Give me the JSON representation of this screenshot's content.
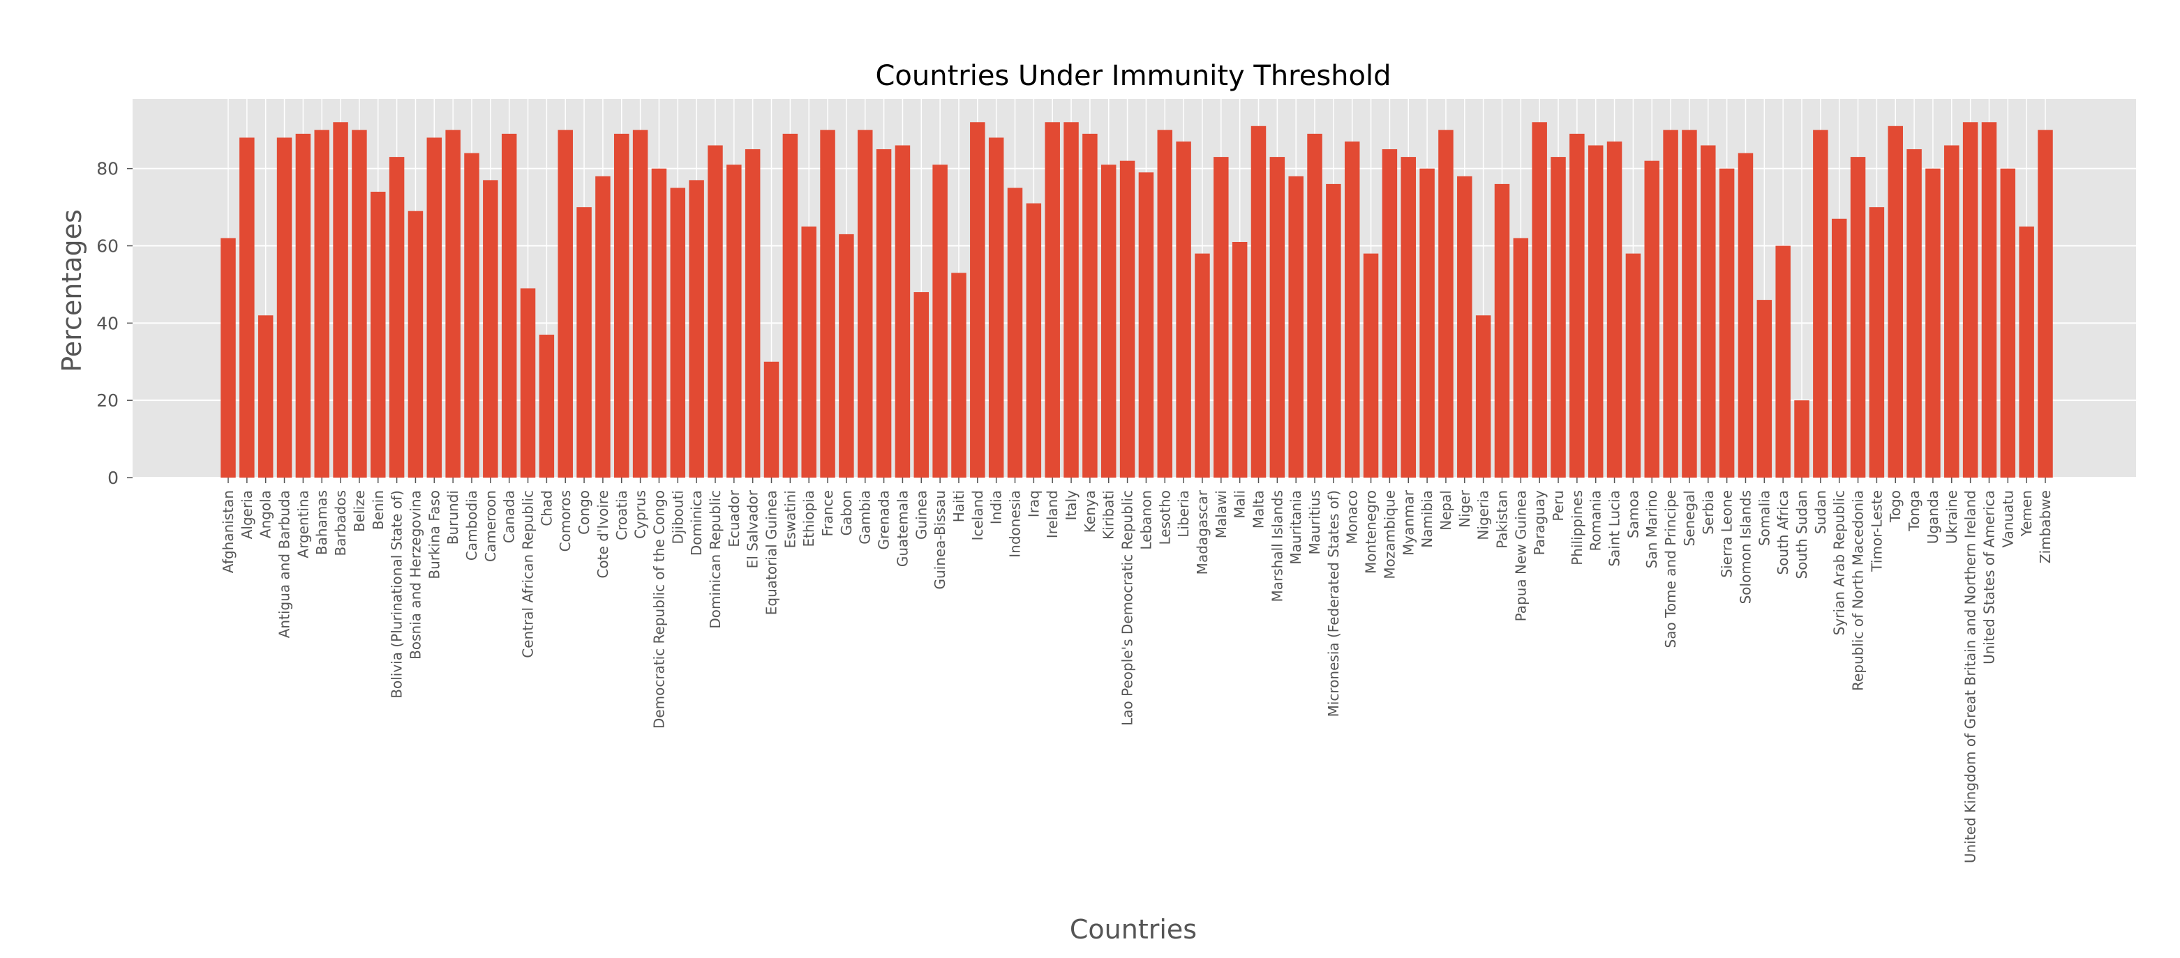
{
  "chart_data": {
    "type": "bar",
    "title": "Countries Under Immunity Threshold",
    "xlabel": "Countries",
    "ylabel": "Percentages",
    "ylim": [
      0,
      98
    ],
    "yticks": [
      0,
      20,
      40,
      60,
      80
    ],
    "grid": true,
    "legend": "none",
    "colors": {
      "bar": "#E24A33",
      "plot_background": "#E5E5E5",
      "grid": "#FFFFFF",
      "text": "#555555"
    },
    "categories": [
      "Afghanistan",
      "Algeria",
      "Angola",
      "Antigua and Barbuda",
      "Argentina",
      "Bahamas",
      "Barbados",
      "Belize",
      "Benin",
      "Bolivia (Plurinational State of)",
      "Bosnia and Herzegovina",
      "Burkina Faso",
      "Burundi",
      "Cambodia",
      "Cameroon",
      "Canada",
      "Central African Republic",
      "Chad",
      "Comoros",
      "Congo",
      "Cote d'Ivoire",
      "Croatia",
      "Cyprus",
      "Democratic Republic of the Congo",
      "Djibouti",
      "Dominica",
      "Dominican Republic",
      "Ecuador",
      "El Salvador",
      "Equatorial Guinea",
      "Eswatini",
      "Ethiopia",
      "France",
      "Gabon",
      "Gambia",
      "Grenada",
      "Guatemala",
      "Guinea",
      "Guinea-Bissau",
      "Haiti",
      "Iceland",
      "India",
      "Indonesia",
      "Iraq",
      "Ireland",
      "Italy",
      "Kenya",
      "Kiribati",
      "Lao People's Democratic Republic",
      "Lebanon",
      "Lesotho",
      "Liberia",
      "Madagascar",
      "Malawi",
      "Mali",
      "Malta",
      "Marshall Islands",
      "Mauritania",
      "Mauritius",
      "Micronesia (Federated States of)",
      "Monaco",
      "Montenegro",
      "Mozambique",
      "Myanmar",
      "Namibia",
      "Nepal",
      "Niger",
      "Nigeria",
      "Pakistan",
      "Papua New Guinea",
      "Paraguay",
      "Peru",
      "Philippines",
      "Romania",
      "Saint Lucia",
      "Samoa",
      "San Marino",
      "Sao Tome and Principe",
      "Senegal",
      "Serbia",
      "Sierra Leone",
      "Solomon Islands",
      "Somalia",
      "South Africa",
      "South Sudan",
      "Sudan",
      "Syrian Arab Republic",
      "Republic of North Macedonia",
      "Timor-Leste",
      "Togo",
      "Tonga",
      "Uganda",
      "Ukraine",
      "United Kingdom of Great Britain and Northern Ireland",
      "United States of America",
      "Vanuatu",
      "Yemen",
      "Zimbabwe"
    ],
    "values": [
      62,
      88,
      42,
      88,
      89,
      90,
      92,
      90,
      74,
      83,
      69,
      88,
      90,
      84,
      77,
      89,
      49,
      37,
      90,
      70,
      78,
      89,
      90,
      80,
      75,
      77,
      86,
      81,
      85,
      30,
      89,
      65,
      90,
      63,
      90,
      85,
      86,
      48,
      81,
      53,
      92,
      88,
      75,
      71,
      92,
      92,
      89,
      81,
      82,
      79,
      90,
      87,
      58,
      83,
      61,
      91,
      83,
      78,
      89,
      76,
      87,
      58,
      85,
      83,
      80,
      90,
      78,
      42,
      76,
      62,
      92,
      83,
      89,
      86,
      87,
      58,
      82,
      90,
      90,
      86,
      80,
      84,
      46,
      60,
      20,
      90,
      67,
      83,
      70,
      91,
      85,
      80,
      86,
      92,
      92,
      80,
      65,
      90
    ]
  }
}
